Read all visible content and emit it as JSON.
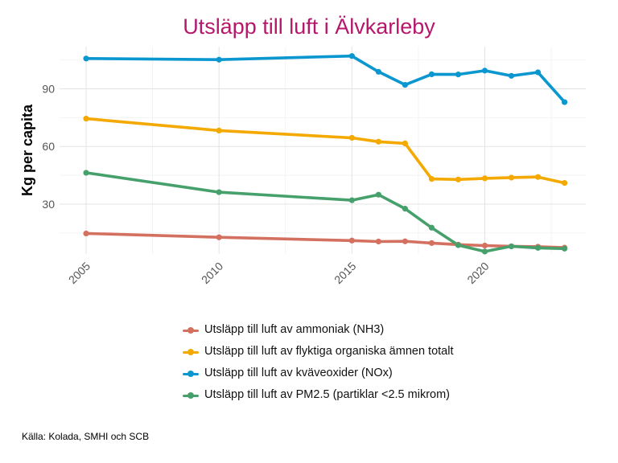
{
  "chart_data": {
    "type": "line",
    "title": "Utsläpp till luft i Älvkarleby",
    "xlabel": "",
    "ylabel": "Kg per capita",
    "xlim": [
      2004.0,
      2023.8
    ],
    "ylim": [
      4,
      112
    ],
    "xticks": [
      2005,
      2010,
      2015,
      2020
    ],
    "yticks": [
      30,
      60,
      90
    ],
    "grid": true,
    "legend_position": "bottom",
    "series": [
      {
        "name": "Utsläpp till luft av ammoniak (NH3)",
        "color": "#d4705f",
        "x": [
          2005,
          2010,
          2015,
          2016,
          2017,
          2018,
          2019,
          2020,
          2021,
          2022,
          2023
        ],
        "y": [
          14.7,
          12.7,
          11.0,
          10.5,
          10.6,
          9.7,
          8.9,
          8.4,
          8.0,
          7.8,
          7.3
        ]
      },
      {
        "name": "Utsläpp till luft av flyktiga organiska ämnen totalt",
        "color": "#f4a900",
        "x": [
          2005,
          2010,
          2015,
          2016,
          2017,
          2018,
          2019,
          2020,
          2021,
          2022,
          2023
        ],
        "y": [
          74.5,
          68.3,
          64.5,
          62.5,
          61.6,
          43.1,
          42.8,
          43.4,
          43.8,
          44.1,
          41.0
        ]
      },
      {
        "name": "Utsläpp till luft av kväveoxider (NOx)",
        "color": "#0a97d0",
        "x": [
          2005,
          2010,
          2015,
          2016,
          2017,
          2018,
          2019,
          2020,
          2021,
          2022,
          2023
        ],
        "y": [
          105.8,
          105.2,
          107.1,
          98.9,
          92.1,
          97.6,
          97.5,
          99.5,
          96.8,
          98.6,
          83.1
        ]
      },
      {
        "name": "Utsläpp till luft av PM2.5 (partiklar <2.5 mikrom)",
        "color": "#46a06b",
        "x": [
          2005,
          2010,
          2015,
          2016,
          2017,
          2018,
          2019,
          2020,
          2021,
          2022,
          2023
        ],
        "y": [
          46.3,
          36.2,
          32.0,
          34.9,
          27.6,
          17.7,
          8.6,
          5.3,
          8.0,
          7.2,
          6.8
        ]
      }
    ]
  },
  "source": "Källa: Kolada, SMHI och SCB"
}
